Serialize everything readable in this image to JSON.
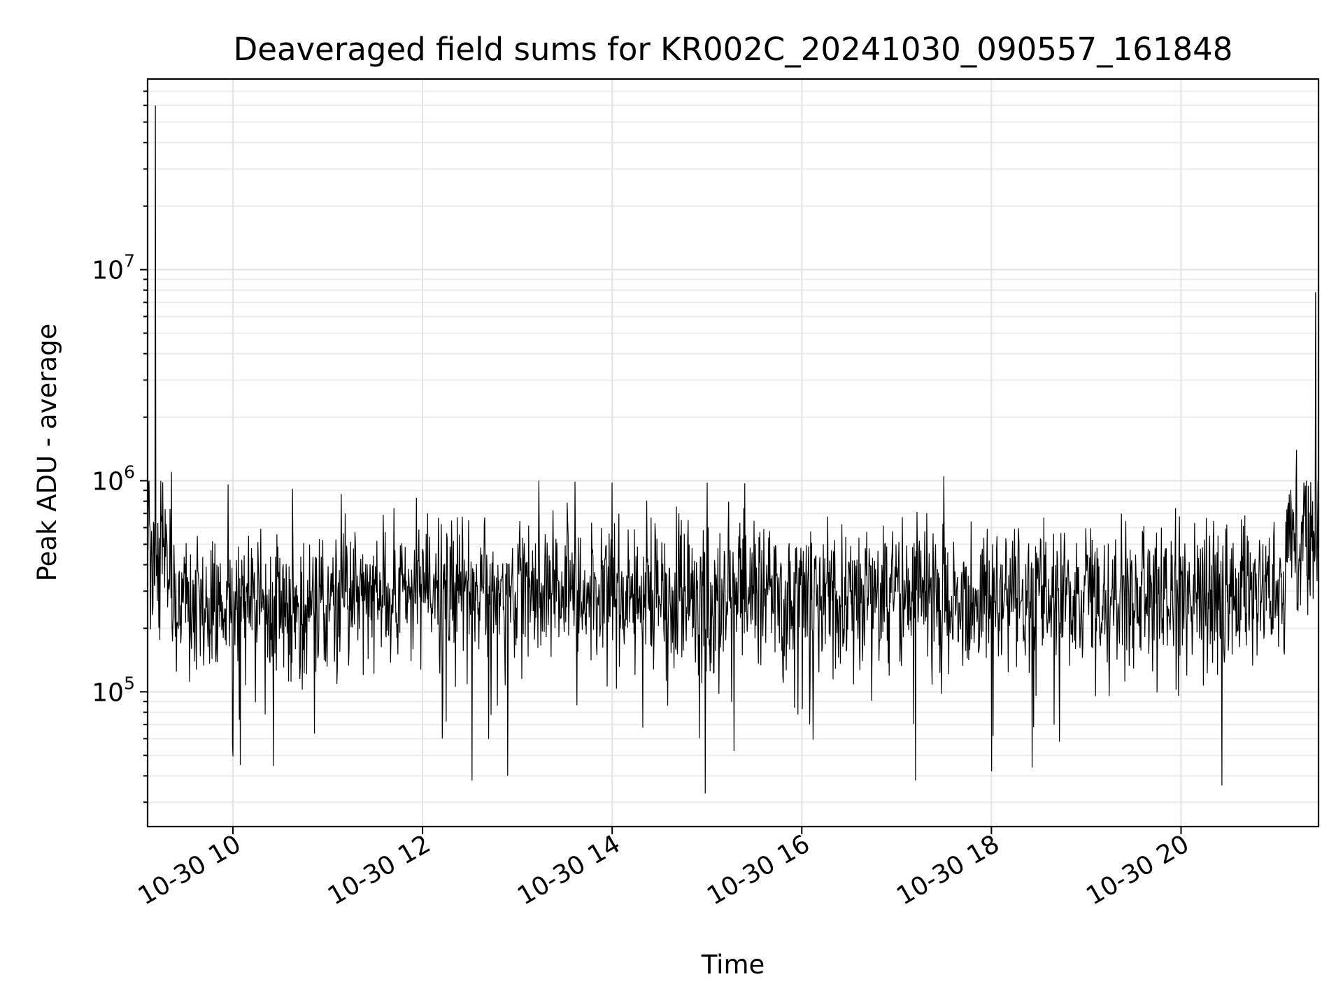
{
  "chart_data": {
    "type": "line",
    "title": "Deaveraged field sums for KR002C_20241030_090557_161848",
    "xlabel": "Time",
    "ylabel": "Peak ADU - average",
    "yscale": "log",
    "grid": true,
    "xlim_hours": [
      9.1,
      21.45
    ],
    "ylim": [
      23000,
      80000000
    ],
    "x_ticks": [
      {
        "value": 10,
        "label": "10-30 10"
      },
      {
        "value": 12,
        "label": "10-30 12"
      },
      {
        "value": 14,
        "label": "10-30 14"
      },
      {
        "value": 16,
        "label": "10-30 16"
      },
      {
        "value": 18,
        "label": "10-30 18"
      },
      {
        "value": 20,
        "label": "10-30 20"
      }
    ],
    "y_ticks": [
      {
        "value": 100000,
        "base": "10",
        "exp": "5"
      },
      {
        "value": 1000000,
        "base": "10",
        "exp": "6"
      },
      {
        "value": 10000000,
        "base": "10",
        "exp": "7"
      }
    ],
    "series": [
      {
        "name": "Peak ADU - average",
        "color": "#000000",
        "spikes": [
          {
            "x": 9.18,
            "y": 60000000
          },
          {
            "x": 21.42,
            "y": 7800000
          },
          {
            "x": 21.22,
            "y": 1400000
          },
          {
            "x": 17.5,
            "y": 1050000
          },
          {
            "x": 9.35,
            "y": 1100000
          },
          {
            "x": 9.95,
            "y": 960000
          },
          {
            "x": 14.0,
            "y": 980000
          },
          {
            "x": 15.0,
            "y": 980000
          },
          {
            "x": 14.98,
            "y": 33000
          },
          {
            "x": 20.43,
            "y": 36000
          },
          {
            "x": 12.52,
            "y": 38000
          },
          {
            "x": 17.2,
            "y": 38000
          },
          {
            "x": 12.9,
            "y": 40000
          },
          {
            "x": 18.0,
            "y": 42000
          },
          {
            "x": 10.08,
            "y": 45000
          }
        ],
        "baseline_segments": [
          {
            "x0": 9.1,
            "x1": 9.35,
            "level": 500000
          },
          {
            "x0": 9.35,
            "x1": 11.0,
            "level": 260000
          },
          {
            "x0": 11.0,
            "x1": 21.1,
            "level": 290000
          },
          {
            "x0": 21.1,
            "x1": 21.45,
            "level": 520000
          }
        ]
      }
    ]
  }
}
